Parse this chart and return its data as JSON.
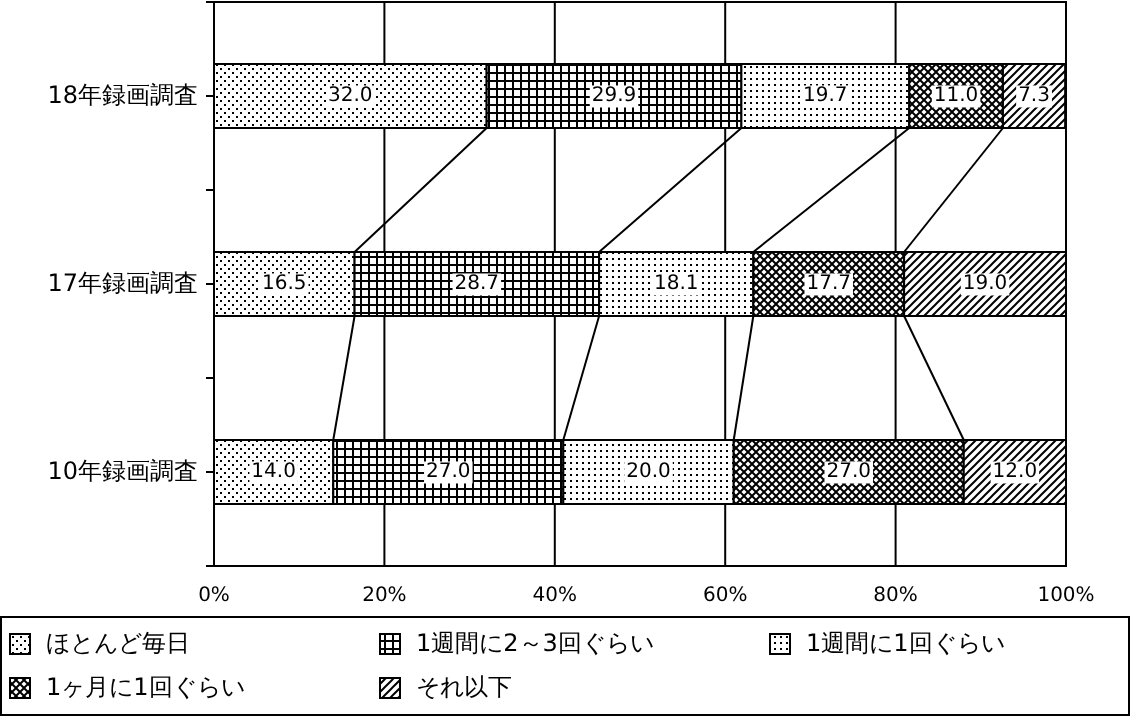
{
  "chart_data": {
    "type": "bar",
    "orientation": "horizontal",
    "stacked": true,
    "categories": [
      "18年録画調査",
      "17年録画調査",
      "10年録画調査"
    ],
    "series": [
      {
        "name": "ほとんど毎日",
        "color": "#000000",
        "values": [
          32.0,
          16.5,
          14.0
        ],
        "value_labels": [
          "32.0",
          "16.5",
          "14.0"
        ]
      },
      {
        "name": "1週間に2～3回ぐらい",
        "color": "#000000",
        "values": [
          29.9,
          28.7,
          27.0
        ],
        "value_labels": [
          "29.9",
          "28.7",
          "27.0"
        ]
      },
      {
        "name": "1週間に1回ぐらい",
        "color": "#000000",
        "values": [
          19.7,
          18.1,
          20.0
        ],
        "value_labels": [
          "19.7",
          "18.1",
          "20.0"
        ]
      },
      {
        "name": "1ヶ月に1回ぐらい",
        "color": "#000000",
        "values": [
          11.0,
          17.7,
          27.0
        ],
        "value_labels": [
          "11.0",
          "17.7",
          "27.0"
        ]
      },
      {
        "name": "それ以下",
        "color": "#000000",
        "values": [
          7.3,
          19.0,
          12.0
        ],
        "value_labels": [
          "7.3",
          "19.0",
          "12.0"
        ]
      }
    ],
    "xlim": [
      0,
      100
    ],
    "xticks": [
      {
        "value": 0,
        "label": "0%"
      },
      {
        "value": 20,
        "label": "20%"
      },
      {
        "value": 40,
        "label": "40%"
      },
      {
        "value": 60,
        "label": "60%"
      },
      {
        "value": 80,
        "label": "80%"
      },
      {
        "value": 100,
        "label": "100%"
      }
    ],
    "grid": "x",
    "legend": "bottom"
  }
}
